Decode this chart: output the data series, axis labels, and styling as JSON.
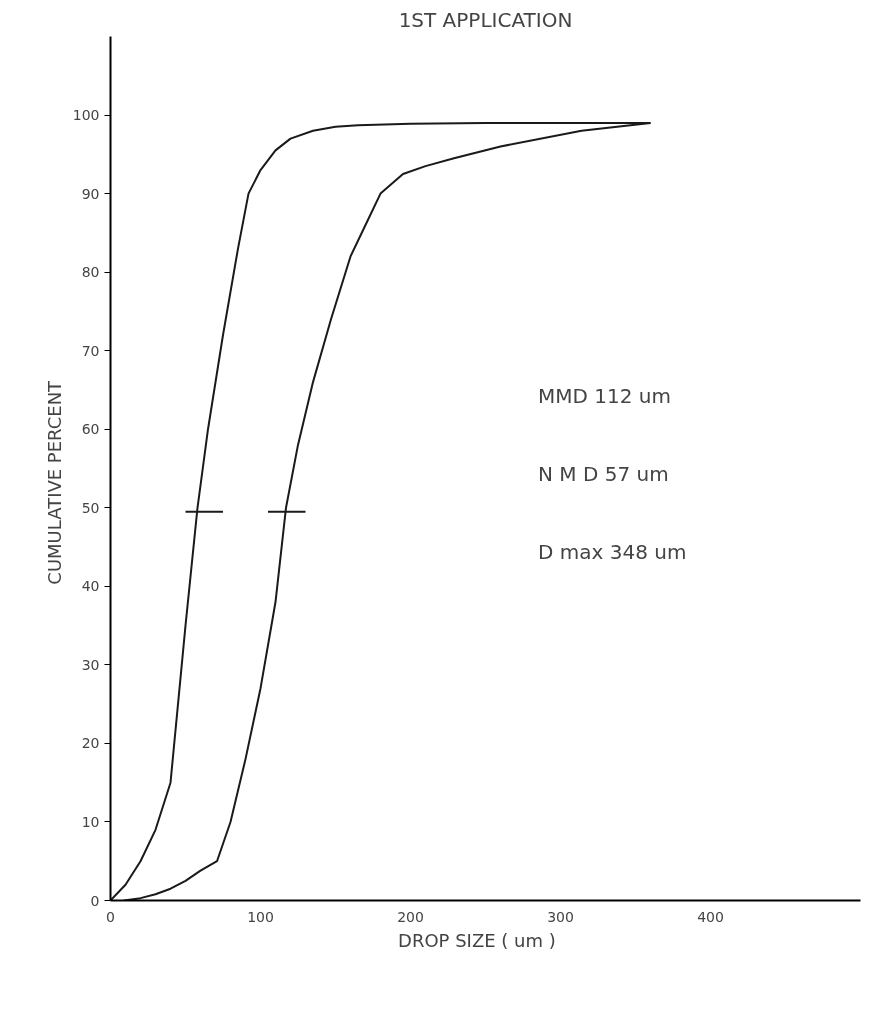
{
  "chart_data": {
    "type": "line",
    "title": "1ST APPLICATION",
    "xlabel": "DROP   SIZE  ( um )",
    "ylabel": "CUMULATIVE      PERCENT",
    "xlim": [
      0,
      500
    ],
    "ylim": [
      0,
      110
    ],
    "xticks": [
      0,
      100,
      200,
      300,
      400
    ],
    "yticks": [
      0,
      10,
      20,
      30,
      40,
      50,
      60,
      70,
      80,
      90,
      100
    ],
    "grid": false,
    "marker": "none",
    "line_style": "solid",
    "series": [
      {
        "color": "#1a1a1a",
        "x": [
          0,
          10,
          20,
          30,
          40,
          45,
          50,
          58,
          65,
          75,
          85,
          92,
          100,
          110,
          120,
          135,
          150,
          165,
          200,
          250,
          300,
          360
        ],
        "values": [
          0,
          2,
          5,
          9,
          15,
          25,
          35,
          50,
          60,
          72,
          83,
          90,
          93,
          95.5,
          97,
          98,
          98.5,
          98.7,
          98.9,
          99,
          99,
          99
        ]
      },
      {
        "color": "#1a1a1a",
        "x": [
          9,
          20,
          30,
          40,
          50,
          60,
          71,
          80,
          90,
          100,
          110,
          117,
          125,
          135,
          147,
          160,
          170,
          180,
          195,
          210,
          229,
          260,
          314,
          360
        ],
        "values": [
          0,
          0.3,
          0.8,
          1.5,
          2.5,
          3.8,
          5,
          10,
          18,
          27,
          38,
          50,
          58,
          66,
          74,
          82,
          86,
          90,
          92.5,
          93.5,
          94.5,
          96,
          98,
          99
        ]
      },
      {
        "color": "#1a1a1a",
        "x": [
          50,
          75
        ],
        "values": [
          49.5,
          49.5
        ]
      },
      {
        "color": "#1a1a1a",
        "x": [
          105,
          130
        ],
        "values": [
          49.5,
          49.5
        ]
      }
    ],
    "annotations": [
      "MMD   112 um",
      "N M D    57 um",
      "D max   348 um"
    ]
  }
}
